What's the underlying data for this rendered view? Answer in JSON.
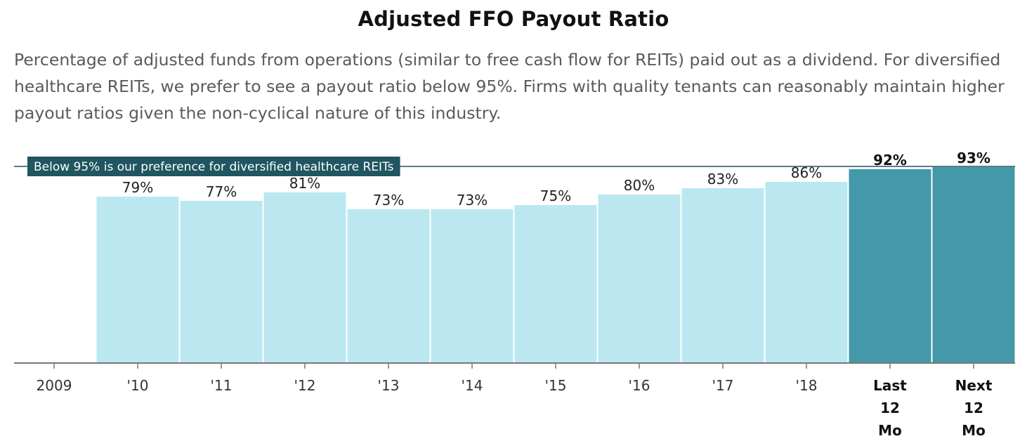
{
  "chart_data": {
    "type": "bar",
    "title": "Adjusted FFO Payout Ratio",
    "subtitle": "Percentage of adjusted funds from operations (similar to free cash flow for REITs) paid out as a dividend. For diversified healthcare REITs, we prefer to see a payout ratio below 95%. Firms with quality tenants can reasonably maintain higher payout ratios given the non-cyclical nature of this industry.",
    "categories": [
      "2009",
      "'10",
      "'11",
      "'12",
      "'13",
      "'14",
      "'15",
      "'16",
      "'17",
      "'18",
      [
        "Last",
        "12",
        "Mo"
      ],
      [
        "Next",
        "12",
        "Mo"
      ]
    ],
    "values": [
      null,
      79,
      77,
      81,
      73,
      73,
      75,
      80,
      83,
      86,
      92,
      93
    ],
    "value_labels": [
      "",
      "79%",
      "77%",
      "81%",
      "73%",
      "73%",
      "75%",
      "80%",
      "83%",
      "86%",
      "92%",
      "93%"
    ],
    "highlighted": [
      false,
      false,
      false,
      false,
      false,
      false,
      false,
      false,
      false,
      false,
      true,
      true
    ],
    "ylim": [
      0,
      100
    ],
    "reference_line": {
      "value": 95,
      "label": "Below 95% is our preference for diversified healthcare REITs"
    },
    "colors": {
      "bar": "#bbe8f0",
      "bar_highlight": "#4399aa",
      "reference": "#1f5660",
      "axis": "#777777"
    },
    "xlabel": "",
    "ylabel": "",
    "grid": false
  }
}
